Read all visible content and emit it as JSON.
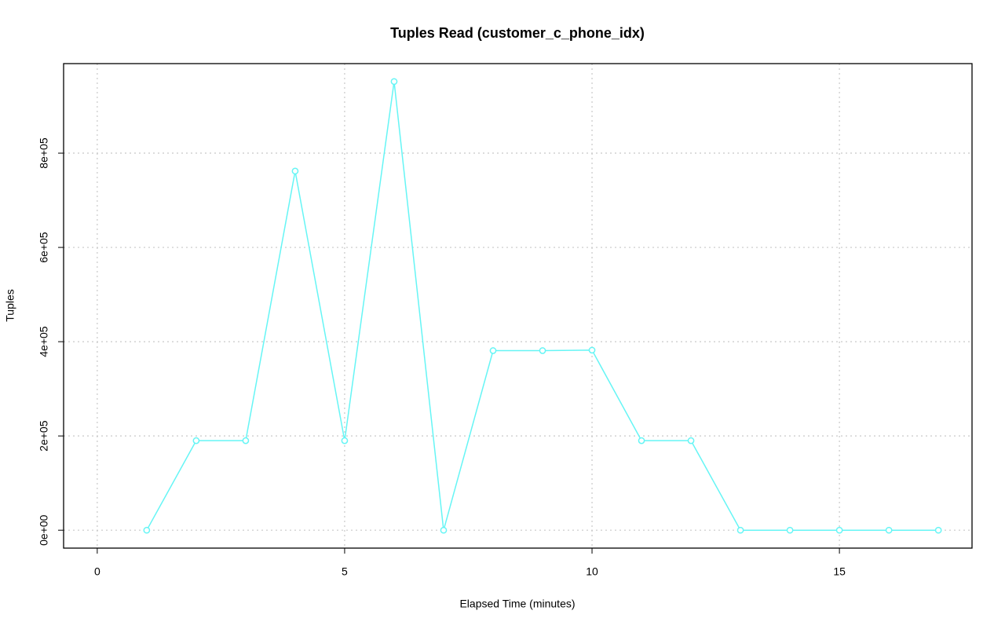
{
  "chart_data": {
    "type": "line",
    "title": "Tuples Read (customer_c_phone_idx)",
    "x_label": "Elapsed Time (minutes)",
    "y_label": "Tuples",
    "x": [
      1,
      2,
      3,
      4,
      5,
      6,
      7,
      8,
      9,
      10,
      11,
      12,
      13,
      14,
      15,
      16,
      17
    ],
    "series": [
      {
        "name": "customer_c_phone_idx",
        "color": "#66f5f5",
        "values": [
          0,
          190000,
          190000,
          762000,
          190000,
          952000,
          0,
          381000,
          381000,
          382000,
          190000,
          190000,
          0,
          0,
          0,
          0,
          0
        ]
      }
    ],
    "xlim": [
      -0.68,
      17.68
    ],
    "xticks": [
      0,
      5,
      10,
      15
    ],
    "ylim": [
      -38000,
      990000
    ],
    "yticks": [
      {
        "value": 0,
        "label": "0e+00"
      },
      {
        "value": 200000,
        "label": "2e+05"
      },
      {
        "value": 400000,
        "label": "4e+05"
      },
      {
        "value": 600000,
        "label": "6e+05"
      },
      {
        "value": 800000,
        "label": "8e+05"
      }
    ],
    "grid": true
  }
}
